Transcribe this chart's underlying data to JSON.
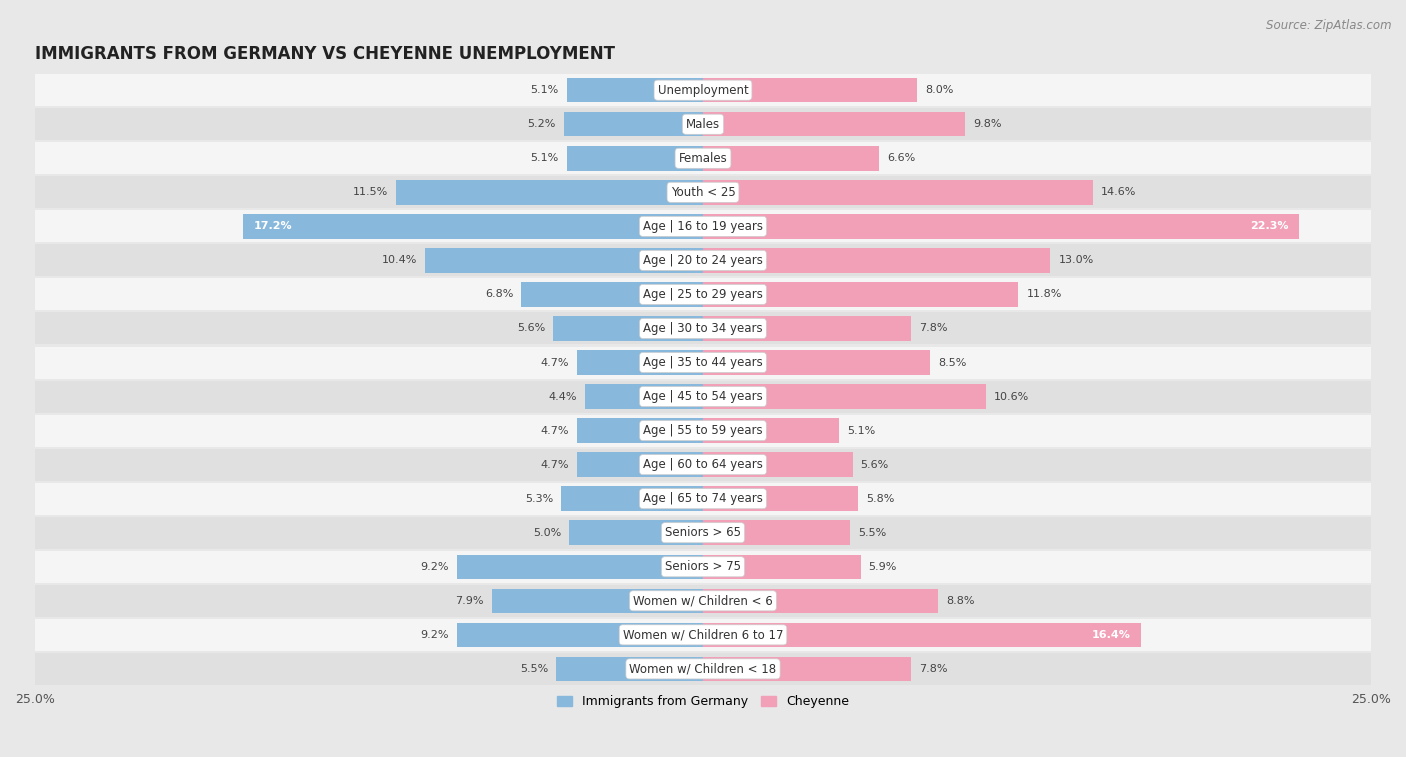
{
  "title": "IMMIGRANTS FROM GERMANY VS CHEYENNE UNEMPLOYMENT",
  "source": "Source: ZipAtlas.com",
  "categories": [
    "Unemployment",
    "Males",
    "Females",
    "Youth < 25",
    "Age | 16 to 19 years",
    "Age | 20 to 24 years",
    "Age | 25 to 29 years",
    "Age | 30 to 34 years",
    "Age | 35 to 44 years",
    "Age | 45 to 54 years",
    "Age | 55 to 59 years",
    "Age | 60 to 64 years",
    "Age | 65 to 74 years",
    "Seniors > 65",
    "Seniors > 75",
    "Women w/ Children < 6",
    "Women w/ Children 6 to 17",
    "Women w/ Children < 18"
  ],
  "left_values": [
    5.1,
    5.2,
    5.1,
    11.5,
    17.2,
    10.4,
    6.8,
    5.6,
    4.7,
    4.4,
    4.7,
    4.7,
    5.3,
    5.0,
    9.2,
    7.9,
    9.2,
    5.5
  ],
  "right_values": [
    8.0,
    9.8,
    6.6,
    14.6,
    22.3,
    13.0,
    11.8,
    7.8,
    8.5,
    10.6,
    5.1,
    5.6,
    5.8,
    5.5,
    5.9,
    8.8,
    16.4,
    7.8
  ],
  "left_color": "#88b8dc",
  "right_color": "#f2a0b8",
  "axis_max": 25.0,
  "left_label": "Immigrants from Germany",
  "right_label": "Cheyenne",
  "bg_color": "#e8e8e8",
  "row_bg_odd": "#f5f5f5",
  "row_bg_even": "#e0e0e0",
  "title_fontsize": 12,
  "source_fontsize": 8.5,
  "cat_fontsize": 8.5,
  "value_fontsize": 8.0
}
